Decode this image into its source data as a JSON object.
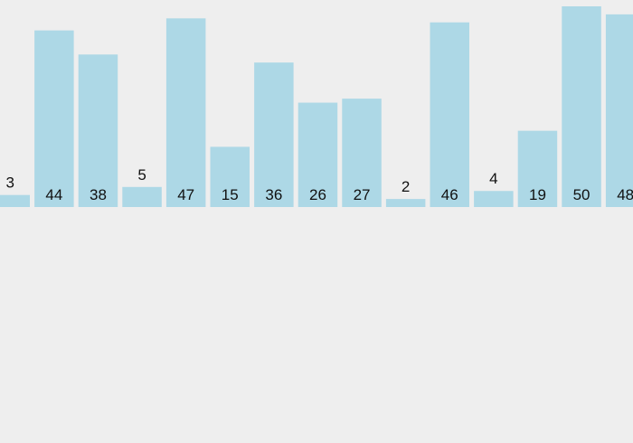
{
  "chart_data": {
    "type": "bar",
    "values": [
      3,
      44,
      38,
      5,
      47,
      15,
      36,
      26,
      27,
      2,
      46,
      4,
      19,
      50,
      48
    ],
    "ylim": [
      0,
      50
    ],
    "grid": false,
    "bar_color": "#ADD8E6",
    "background_color": "#EEEEEE",
    "label_color": "#111111"
  }
}
